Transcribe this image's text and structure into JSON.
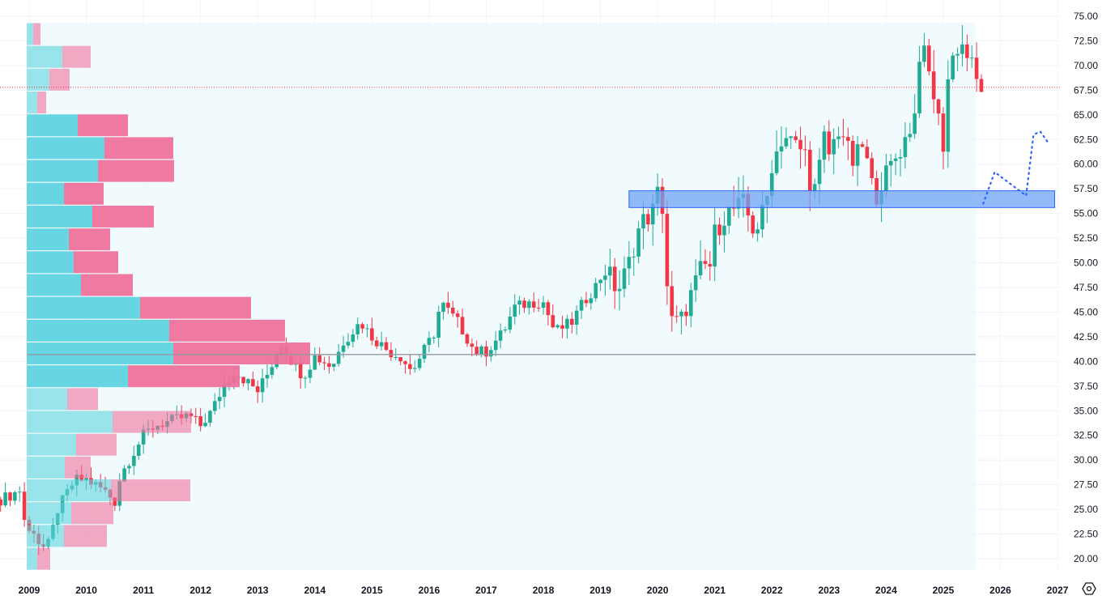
{
  "chart_data": {
    "type": "candlestick",
    "interval": "monthly",
    "y_ticks": [
      "75.00",
      "72.50",
      "70.00",
      "67.50",
      "65.00",
      "62.50",
      "60.00",
      "57.50",
      "55.00",
      "52.50",
      "50.00",
      "47.50",
      "45.00",
      "42.50",
      "40.00",
      "37.50",
      "35.00",
      "32.50",
      "30.00",
      "27.50",
      "25.00",
      "22.50",
      "20.00"
    ],
    "ylim": [
      20,
      75
    ],
    "x_ticks": [
      "2009",
      "2010",
      "2011",
      "2012",
      "2013",
      "2014",
      "2015",
      "2016",
      "2017",
      "2018",
      "2019",
      "2020",
      "2021",
      "2022",
      "2023",
      "2024",
      "2025",
      "2026",
      "2027"
    ],
    "xlim": [
      2008.49,
      2027.0
    ],
    "price_path": [
      [
        2008.5,
        26
      ],
      [
        2008.7,
        26.5
      ],
      [
        2008.85,
        27
      ],
      [
        2008.95,
        22.5
      ],
      [
        2009.1,
        23
      ],
      [
        2009.2,
        21
      ],
      [
        2009.35,
        21.5
      ],
      [
        2009.5,
        25
      ],
      [
        2009.8,
        28
      ],
      [
        2010.0,
        28
      ],
      [
        2010.3,
        27
      ],
      [
        2010.5,
        25.8
      ],
      [
        2010.6,
        28.5
      ],
      [
        2010.8,
        30.5
      ],
      [
        2011.0,
        32.5
      ],
      [
        2011.2,
        33.5
      ],
      [
        2011.5,
        34
      ],
      [
        2011.8,
        34.5
      ],
      [
        2012.0,
        33.5
      ],
      [
        2012.2,
        35
      ],
      [
        2012.4,
        37.5
      ],
      [
        2012.6,
        39
      ],
      [
        2012.8,
        38
      ],
      [
        2013.0,
        37
      ],
      [
        2013.2,
        39
      ],
      [
        2013.4,
        42
      ],
      [
        2013.6,
        40
      ],
      [
        2013.8,
        38.5
      ],
      [
        2014.0,
        40.5
      ],
      [
        2014.3,
        39.5
      ],
      [
        2014.5,
        42
      ],
      [
        2014.8,
        44
      ],
      [
        2015.0,
        42.5
      ],
      [
        2015.3,
        41
      ],
      [
        2015.5,
        40.5
      ],
      [
        2015.7,
        39
      ],
      [
        2015.9,
        41
      ],
      [
        2016.1,
        43
      ],
      [
        2016.2,
        46
      ],
      [
        2016.5,
        44
      ],
      [
        2016.8,
        41
      ],
      [
        2017.0,
        41
      ],
      [
        2017.3,
        43
      ],
      [
        2017.5,
        45.5
      ],
      [
        2017.8,
        46
      ],
      [
        2018.0,
        46
      ],
      [
        2018.2,
        43
      ],
      [
        2018.5,
        44
      ],
      [
        2018.7,
        46
      ],
      [
        2018.9,
        47.5
      ],
      [
        2019.1,
        49.5
      ],
      [
        2019.3,
        47
      ],
      [
        2019.5,
        50
      ],
      [
        2019.7,
        54
      ],
      [
        2019.9,
        55
      ],
      [
        2020.05,
        58
      ],
      [
        2020.12,
        53
      ],
      [
        2020.2,
        44
      ],
      [
        2020.4,
        44
      ],
      [
        2020.6,
        47
      ],
      [
        2020.8,
        50
      ],
      [
        2020.9,
        49
      ],
      [
        2021.0,
        53
      ],
      [
        2021.2,
        55
      ],
      [
        2021.5,
        56
      ],
      [
        2021.7,
        53
      ],
      [
        2021.9,
        56
      ],
      [
        2022.0,
        60
      ],
      [
        2022.2,
        63
      ],
      [
        2022.4,
        62
      ],
      [
        2022.6,
        61
      ],
      [
        2022.7,
        57
      ],
      [
        2022.8,
        58
      ],
      [
        2022.9,
        63
      ],
      [
        2023.0,
        61
      ],
      [
        2023.2,
        64
      ],
      [
        2023.4,
        60
      ],
      [
        2023.6,
        62
      ],
      [
        2023.8,
        56.5
      ],
      [
        2023.9,
        58
      ],
      [
        2024.1,
        60
      ],
      [
        2024.3,
        62
      ],
      [
        2024.5,
        65
      ],
      [
        2024.6,
        72.5
      ],
      [
        2024.8,
        68
      ],
      [
        2024.9,
        65
      ],
      [
        2025.0,
        62
      ],
      [
        2025.1,
        70
      ],
      [
        2025.3,
        72.5
      ],
      [
        2025.5,
        70
      ],
      [
        2025.6,
        68
      ],
      [
        2025.68,
        67.8
      ]
    ],
    "last_price": 67.8,
    "poc_price": 40.7,
    "zone": {
      "low": 55.6,
      "high": 57.3,
      "from": 2019.5,
      "to": 2026.95
    },
    "projection_path": [
      [
        2025.7,
        56
      ],
      [
        2025.9,
        59.2
      ],
      [
        2026.45,
        56.8
      ],
      [
        2026.58,
        63
      ],
      [
        2026.7,
        63.3
      ],
      [
        2026.82,
        62.3
      ]
    ],
    "volume_profile": {
      "top_price": 74.34,
      "row_height": 2.313,
      "rows": [
        {
          "up": 8,
          "down": 9,
          "in_value_area": false
        },
        {
          "up": 44,
          "down": 35,
          "in_value_area": false
        },
        {
          "up": 28,
          "down": 25,
          "in_value_area": false
        },
        {
          "up": 13,
          "down": 11,
          "in_value_area": false
        },
        {
          "up": 63,
          "down": 62,
          "in_value_area": true
        },
        {
          "up": 96,
          "down": 85,
          "in_value_area": true
        },
        {
          "up": 88,
          "down": 94,
          "in_value_area": true
        },
        {
          "up": 46,
          "down": 49,
          "in_value_area": true
        },
        {
          "up": 81,
          "down": 76,
          "in_value_area": true
        },
        {
          "up": 52,
          "down": 51,
          "in_value_area": true
        },
        {
          "up": 58,
          "down": 55,
          "in_value_area": true
        },
        {
          "up": 67,
          "down": 64,
          "in_value_area": true
        },
        {
          "up": 140,
          "down": 137,
          "in_value_area": true
        },
        {
          "up": 176,
          "down": 143,
          "in_value_area": true
        },
        {
          "up": 181,
          "down": 169,
          "in_value_area": true
        },
        {
          "up": 125,
          "down": 138,
          "in_value_area": true
        },
        {
          "up": 50,
          "down": 38,
          "in_value_area": false
        },
        {
          "up": 106,
          "down": 97,
          "in_value_area": false
        },
        {
          "up": 61,
          "down": 50,
          "in_value_area": false
        },
        {
          "up": 47,
          "down": 32,
          "in_value_area": false
        },
        {
          "up": 104,
          "down": 98,
          "in_value_area": false
        },
        {
          "up": 55,
          "down": 52,
          "in_value_area": false
        },
        {
          "up": 46,
          "down": 53,
          "in_value_area": false
        },
        {
          "up": 13,
          "down": 16,
          "in_value_area": false
        }
      ]
    },
    "colors": {
      "up": "#22ab94",
      "down": "#f23645",
      "vp_up": "#5fd3e0",
      "vp_down": "#ef6f9a",
      "zone": "#6fa3f5",
      "projection": "#2962ff",
      "last_line": "#f23645",
      "poc": "#9598a1"
    }
  },
  "settings_icon": "gear-hexagon-icon"
}
